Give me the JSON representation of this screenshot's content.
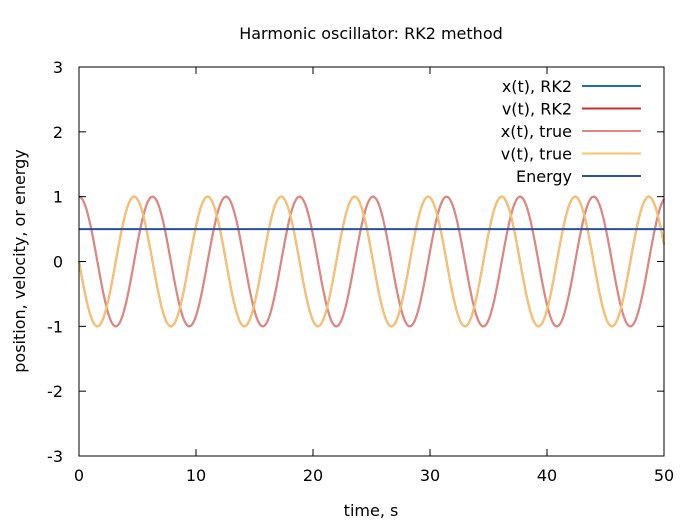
{
  "chart_data": {
    "type": "line",
    "title": "Harmonic oscillator: RK2 method",
    "xlabel": "time, s",
    "ylabel": "position, velocity, or energy",
    "xlim": [
      0,
      50
    ],
    "ylim": [
      -3,
      3
    ],
    "xticks": [
      0,
      10,
      20,
      30,
      40,
      50
    ],
    "yticks": [
      -3,
      -2,
      -1,
      0,
      1,
      2,
      3
    ],
    "grid": false,
    "legend_position": "top-right",
    "x_start": 0,
    "x_end": 50,
    "series": [
      {
        "name": "x(t), RK2",
        "color": "#1f6fa8",
        "function": "cos(t)",
        "amplitude": 1,
        "offset": 0
      },
      {
        "name": "v(t), RK2",
        "color": "#c8302f",
        "function": "-sin(t)",
        "amplitude": 1,
        "offset": 0
      },
      {
        "name": "x(t), true",
        "color": "#e8847a",
        "function": "cos(t)",
        "amplitude": 1,
        "offset": 0
      },
      {
        "name": "v(t), true",
        "color": "#f7c46c",
        "function": "-sin(t)",
        "amplitude": 1,
        "offset": 0
      },
      {
        "name": "Energy",
        "color": "#2b4f9e",
        "function": "constant",
        "value": 0.5
      }
    ]
  }
}
